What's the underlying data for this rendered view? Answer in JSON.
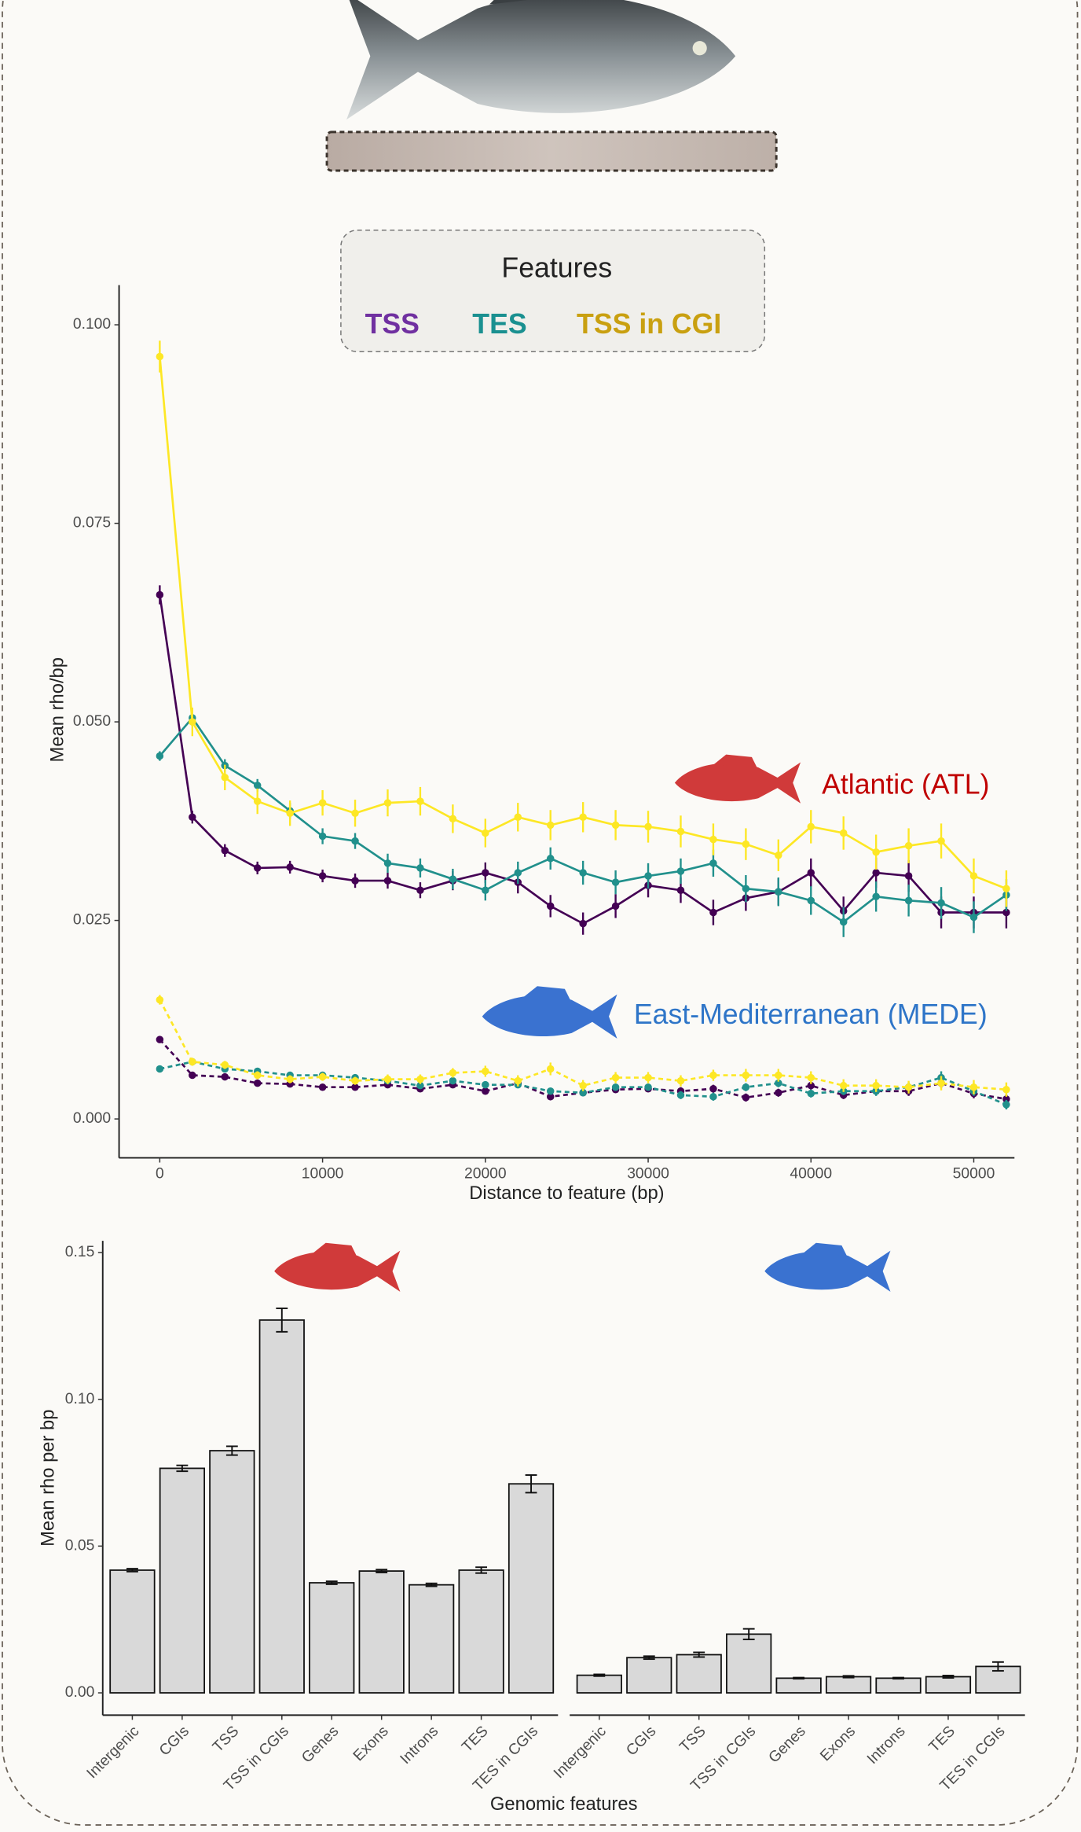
{
  "chart_data": [
    {
      "type": "line",
      "legend": {
        "title": "Features",
        "items": [
          {
            "name": "TSS",
            "color": "#7030a0"
          },
          {
            "name": "TES",
            "color": "#1a9090"
          },
          {
            "name": "TSS in CGI",
            "color": "#c9a010"
          }
        ]
      },
      "x_label": "Distance to feature (bp)",
      "y_label": "Mean rho/bp",
      "x": [
        0,
        2000,
        4000,
        6000,
        8000,
        10000,
        12000,
        14000,
        16000,
        18000,
        20000,
        22000,
        24000,
        26000,
        28000,
        30000,
        32000,
        34000,
        36000,
        38000,
        40000,
        42000,
        44000,
        46000,
        48000,
        50000,
        52000
      ],
      "xlim": [
        -2500,
        52500
      ],
      "xticks": [
        0,
        10000,
        20000,
        30000,
        40000,
        50000
      ],
      "ylim": [
        -0.0049,
        0.105
      ],
      "yticks": [
        {
          "value": 0,
          "label": "0.000"
        },
        {
          "value": 0.025,
          "label": "0.025"
        },
        {
          "value": 0.05,
          "label": "0.050"
        },
        {
          "value": 0.075,
          "label": "0.075"
        },
        {
          "value": 0.1,
          "label": "0.100"
        }
      ],
      "groups": [
        {
          "label": "Atlantic (ATL)",
          "label_color": "#c00000",
          "icon_color": "#d03a3a",
          "line_style": "solid",
          "series": [
            {
              "color": "#440154",
              "values": [
                0.066,
                0.038,
                0.0338,
                0.0316,
                0.0317,
                0.0306,
                0.03,
                0.03,
                0.0288,
                0.03,
                0.031,
                0.0298,
                0.0268,
                0.0246,
                0.0268,
                0.0294,
                0.0288,
                0.026,
                0.0278,
                0.0286,
                0.031,
                0.0262,
                0.031,
                0.0306,
                0.026,
                0.026,
                0.026
              ],
              "errors": [
                0.0012,
                0.0008,
                0.0008,
                0.0008,
                0.0008,
                0.0008,
                0.0009,
                0.001,
                0.001,
                0.0012,
                0.0013,
                0.0014,
                0.0014,
                0.0014,
                0.0015,
                0.0015,
                0.0016,
                0.0016,
                0.0016,
                0.0017,
                0.0018,
                0.0018,
                0.0019,
                0.002,
                0.002,
                0.002,
                0.002
              ]
            },
            {
              "color": "#21908c",
              "values": [
                0.0457,
                0.0505,
                0.0445,
                0.042,
                0.0388,
                0.0356,
                0.035,
                0.0322,
                0.0316,
                0.0302,
                0.0288,
                0.031,
                0.0328,
                0.031,
                0.0298,
                0.0306,
                0.0312,
                0.0322,
                0.029,
                0.0286,
                0.0275,
                0.0248,
                0.028,
                0.0275,
                0.0272,
                0.0254,
                0.0282
              ],
              "errors": [
                0.0006,
                0.001,
                0.0008,
                0.0008,
                0.001,
                0.001,
                0.001,
                0.0012,
                0.0012,
                0.0013,
                0.0013,
                0.0014,
                0.0014,
                0.0015,
                0.0015,
                0.0016,
                0.0016,
                0.0017,
                0.0017,
                0.0018,
                0.0018,
                0.0019,
                0.0019,
                0.002,
                0.002,
                0.002,
                0.002
              ]
            },
            {
              "color": "#fde725",
              "values": [
                0.096,
                0.05,
                0.043,
                0.04,
                0.0385,
                0.0398,
                0.0385,
                0.0398,
                0.04,
                0.0378,
                0.036,
                0.038,
                0.037,
                0.038,
                0.037,
                0.0368,
                0.0362,
                0.0352,
                0.0346,
                0.0332,
                0.0368,
                0.036,
                0.0336,
                0.0344,
                0.035,
                0.0306,
                0.029
              ],
              "errors": [
                0.002,
                0.0018,
                0.0016,
                0.0016,
                0.0016,
                0.0016,
                0.0017,
                0.0017,
                0.0018,
                0.0018,
                0.0018,
                0.0018,
                0.0019,
                0.0019,
                0.0019,
                0.002,
                0.002,
                0.002,
                0.002,
                0.002,
                0.0021,
                0.0021,
                0.0022,
                0.0022,
                0.0022,
                0.0022,
                0.0023
              ]
            }
          ]
        },
        {
          "label": "East-Mediterranean (MEDE)",
          "label_color": "#2e75c8",
          "icon_color": "#3a72d0",
          "line_style": "dashed",
          "series": [
            {
              "color": "#440154",
              "values": [
                0.01,
                0.0055,
                0.0053,
                0.0045,
                0.0044,
                0.004,
                0.004,
                0.0043,
                0.0038,
                0.0043,
                0.0035,
                0.0045,
                0.0028,
                0.0033,
                0.0037,
                0.0038,
                0.0035,
                0.0038,
                0.0027,
                0.0033,
                0.0042,
                0.003,
                0.0035,
                0.0035,
                0.0045,
                0.0032,
                0.0025
              ],
              "errors": [
                0.0004,
                0.0003,
                0.0003,
                0.0003,
                0.0003,
                0.0003,
                0.0003,
                0.0004,
                0.0004,
                0.0004,
                0.0004,
                0.0004,
                0.0004,
                0.0004,
                0.0004,
                0.0004,
                0.0005,
                0.0005,
                0.0005,
                0.0005,
                0.0005,
                0.0005,
                0.0005,
                0.0006,
                0.0006,
                0.0006,
                0.0006
              ]
            },
            {
              "color": "#21908c",
              "values": [
                0.0063,
                0.0072,
                0.0063,
                0.006,
                0.0055,
                0.0055,
                0.0052,
                0.0048,
                0.0042,
                0.0048,
                0.0043,
                0.0043,
                0.0035,
                0.0033,
                0.004,
                0.004,
                0.003,
                0.0028,
                0.004,
                0.0045,
                0.0032,
                0.0035,
                0.0035,
                0.004,
                0.0052,
                0.0035,
                0.0018
              ],
              "errors": [
                0.0003,
                0.0004,
                0.0003,
                0.0003,
                0.0003,
                0.0003,
                0.0003,
                0.0004,
                0.0004,
                0.0004,
                0.0004,
                0.0004,
                0.0004,
                0.0004,
                0.0004,
                0.0004,
                0.0005,
                0.0005,
                0.0005,
                0.0005,
                0.0005,
                0.0005,
                0.0006,
                0.0006,
                0.0008,
                0.0006,
                0.0006
              ]
            },
            {
              "color": "#fde725",
              "values": [
                0.015,
                0.0072,
                0.0068,
                0.0055,
                0.005,
                0.0053,
                0.0048,
                0.005,
                0.005,
                0.0058,
                0.006,
                0.0048,
                0.0063,
                0.0042,
                0.0052,
                0.0052,
                0.0048,
                0.0055,
                0.0055,
                0.0055,
                0.0052,
                0.0042,
                0.0042,
                0.004,
                0.0045,
                0.004,
                0.0037
              ],
              "errors": [
                0.0006,
                0.0005,
                0.0005,
                0.0005,
                0.0005,
                0.0005,
                0.0005,
                0.0006,
                0.0006,
                0.0006,
                0.0007,
                0.0007,
                0.0008,
                0.0007,
                0.0007,
                0.0007,
                0.0007,
                0.0007,
                0.0008,
                0.0008,
                0.0008,
                0.0008,
                0.0008,
                0.0008,
                0.0009,
                0.0009,
                0.0009
              ]
            }
          ]
        }
      ]
    },
    {
      "type": "bar",
      "x_label": "Genomic features",
      "y_label": "Mean rho per bp",
      "categories": [
        "Intergenic",
        "CGIs",
        "TSS",
        "TSS in CGIs",
        "Genes",
        "Exons",
        "Introns",
        "TES",
        "TES in CGIs"
      ],
      "ylim": [
        -0.0076,
        0.154
      ],
      "yticks": [
        {
          "value": 0,
          "label": "0.00"
        },
        {
          "value": 0.05,
          "label": "0.05"
        },
        {
          "value": 0.1,
          "label": "0.10"
        },
        {
          "value": 0.15,
          "label": "0.15"
        }
      ],
      "color": "#d9d9d9",
      "panels": [
        {
          "icon_color": "#d03a3a",
          "values": [
            0.0418,
            0.0765,
            0.0825,
            0.127,
            0.0375,
            0.0415,
            0.0368,
            0.0418,
            0.0712
          ],
          "errors": [
            0.0005,
            0.001,
            0.0015,
            0.004,
            0.0005,
            0.0005,
            0.0005,
            0.001,
            0.003
          ]
        },
        {
          "icon_color": "#3a72d0",
          "values": [
            0.006,
            0.012,
            0.013,
            0.02,
            0.005,
            0.0055,
            0.005,
            0.0055,
            0.009
          ],
          "errors": [
            0.0003,
            0.0005,
            0.0008,
            0.0018,
            0.0002,
            0.0003,
            0.0002,
            0.0004,
            0.0015
          ]
        }
      ]
    }
  ]
}
